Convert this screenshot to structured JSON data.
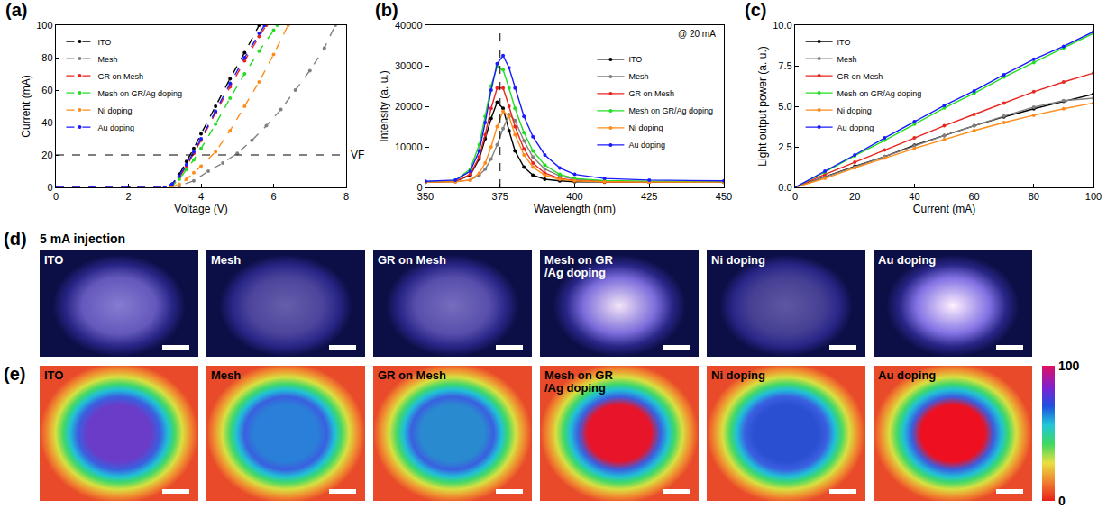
{
  "chart_data": [
    {
      "type": "line",
      "panel": "(a)",
      "x_label": "Voltage (V)",
      "y_label": "Current (mA)",
      "xlim": [
        0,
        8
      ],
      "xticks": [
        0,
        2,
        4,
        6,
        8
      ],
      "ylim": [
        0,
        100
      ],
      "yticks": [
        0,
        20,
        40,
        60,
        80,
        100
      ],
      "grid": false,
      "legend": "top left",
      "marker": "circle",
      "line_style": "dash",
      "hlines": [
        {
          "y": 20,
          "label": "VF",
          "line_style": "dash"
        }
      ],
      "series": [
        {
          "name": "ITO",
          "color": "#000000",
          "x": [
            0,
            1,
            2,
            3,
            3.2,
            3.4,
            3.6,
            3.8,
            4.0,
            4.4,
            4.8,
            5.2,
            5.6
          ],
          "values": [
            0,
            0,
            0,
            0,
            2,
            8,
            16,
            24,
            33,
            50,
            67,
            83,
            100
          ]
        },
        {
          "name": "Mesh",
          "color": "#808080",
          "x": [
            0,
            1,
            2,
            3,
            3.4,
            3.8,
            4.2,
            4.6,
            5.0,
            5.4,
            5.8,
            6.2,
            6.6,
            7.0,
            7.4,
            7.7
          ],
          "values": [
            0,
            0,
            0,
            0,
            1,
            4,
            10,
            15,
            21,
            29,
            38,
            48,
            60,
            72,
            86,
            100
          ]
        },
        {
          "name": "GR on Mesh",
          "color": "#e8251f",
          "x": [
            0,
            1,
            2,
            3,
            3.2,
            3.4,
            3.6,
            3.8,
            4.0,
            4.4,
            4.8,
            5.2,
            5.6,
            5.8
          ],
          "values": [
            0,
            0,
            0,
            0,
            1,
            6,
            13,
            21,
            29,
            46,
            62,
            78,
            93,
            100
          ]
        },
        {
          "name": "Mesh on GR/Ag doping",
          "color": "#22dd22",
          "x": [
            0,
            1,
            2,
            3,
            3.2,
            3.4,
            3.6,
            3.8,
            4.0,
            4.4,
            4.8,
            5.2,
            5.6,
            6.0,
            6.1
          ],
          "values": [
            0,
            0,
            0,
            0,
            1,
            5,
            11,
            17,
            24,
            39,
            55,
            70,
            84,
            97,
            100
          ]
        },
        {
          "name": "Ni doping",
          "color": "#ff8c1a",
          "x": [
            0,
            1,
            2,
            3,
            3.2,
            3.4,
            3.6,
            3.8,
            4.0,
            4.4,
            4.8,
            5.2,
            5.6,
            6.0,
            6.4
          ],
          "values": [
            0,
            0,
            0,
            0,
            0.5,
            2,
            5,
            9,
            13,
            22,
            35,
            50,
            65,
            82,
            100
          ]
        },
        {
          "name": "Au doping",
          "color": "#1a1aff",
          "x": [
            0,
            1,
            2,
            3,
            3.2,
            3.4,
            3.6,
            3.8,
            4.0,
            4.4,
            4.8,
            5.2,
            5.6,
            5.75
          ],
          "values": [
            0,
            0,
            0,
            0,
            2,
            7,
            14,
            22,
            30,
            47,
            64,
            80,
            95,
            100
          ]
        }
      ]
    },
    {
      "type": "line",
      "panel": "(b)",
      "x_label": "Wavelength (nm)",
      "y_label": "Intensity (a. u.)",
      "xlim": [
        350,
        450
      ],
      "xticks": [
        350,
        375,
        400,
        425,
        450
      ],
      "ylim": [
        0,
        40000
      ],
      "yticks": [
        0,
        10000,
        20000,
        30000,
        40000
      ],
      "grid": false,
      "legend": "top right",
      "marker": "circle",
      "line_style": "solid",
      "annotations": [
        {
          "text": "@ 20 mA"
        }
      ],
      "vlines": [
        {
          "x": 375,
          "line_style": "dash"
        }
      ],
      "x": [
        350,
        360,
        365,
        368,
        370,
        372,
        374,
        376,
        378,
        380,
        383,
        386,
        390,
        395,
        400,
        410,
        425,
        450
      ],
      "series": [
        {
          "name": "ITO",
          "color": "#000000",
          "values": [
            1300,
            1500,
            3000,
            7000,
            12000,
            17000,
            21000,
            19500,
            14000,
            9000,
            5000,
            3000,
            2000,
            1600,
            1400,
            1300,
            1300,
            1300
          ]
        },
        {
          "name": "Mesh",
          "color": "#808080",
          "values": [
            1300,
            1400,
            1800,
            3000,
            4500,
            7000,
            10500,
            14500,
            18000,
            16500,
            11500,
            7500,
            4500,
            2800,
            2000,
            1500,
            1400,
            1300
          ]
        },
        {
          "name": "GR on Mesh",
          "color": "#e8251f",
          "values": [
            1300,
            1500,
            3200,
            7500,
            13000,
            19500,
            24500,
            24500,
            20000,
            15000,
            9500,
            6000,
            3500,
            2200,
            1700,
            1400,
            1300,
            1300
          ]
        },
        {
          "name": "Mesh on GR/Ag doping",
          "color": "#22dd22",
          "values": [
            1400,
            1700,
            4500,
            10500,
            17500,
            25000,
            29800,
            29000,
            24500,
            19500,
            13500,
            9000,
            5500,
            3200,
            2200,
            1700,
            1500,
            1400
          ]
        },
        {
          "name": "Ni doping",
          "color": "#ff8c1a",
          "values": [
            1300,
            1400,
            1800,
            3500,
            6000,
            10000,
            15000,
            18800,
            17500,
            13000,
            8000,
            5000,
            3000,
            2000,
            1600,
            1400,
            1300,
            1300
          ]
        },
        {
          "name": "Au doping",
          "color": "#1a1aff",
          "values": [
            1500,
            1800,
            4000,
            9000,
            16000,
            24000,
            30500,
            32500,
            29500,
            24500,
            17500,
            12500,
            8000,
            4800,
            3200,
            2200,
            1800,
            1600
          ]
        }
      ]
    },
    {
      "type": "line",
      "panel": "(c)",
      "x_label": "Current (mA)",
      "y_label": "Light output power (a. u.)",
      "xlim": [
        0,
        100
      ],
      "xticks": [
        0,
        20,
        40,
        60,
        80,
        100
      ],
      "ylim": [
        0,
        10
      ],
      "yticks": [
        {
          "value": 0,
          "label": "0.0"
        },
        2.5,
        {
          "value": 5,
          "label": "5.0"
        },
        7.5,
        {
          "value": 10,
          "label": "10.0"
        }
      ],
      "grid": false,
      "legend": "top left",
      "marker": "circle",
      "line_style": "solid",
      "x": [
        0,
        10,
        20,
        30,
        40,
        50,
        60,
        70,
        80,
        90,
        100
      ],
      "series": [
        {
          "name": "ITO",
          "color": "#000000",
          "values": [
            0,
            0.65,
            1.3,
            1.9,
            2.6,
            3.2,
            3.8,
            4.35,
            4.85,
            5.3,
            5.75
          ]
        },
        {
          "name": "Mesh",
          "color": "#808080",
          "values": [
            0,
            0.62,
            1.25,
            1.9,
            2.55,
            3.2,
            3.8,
            4.4,
            4.95,
            5.35,
            5.5
          ]
        },
        {
          "name": "GR on Mesh",
          "color": "#e8251f",
          "values": [
            0,
            0.8,
            1.55,
            2.3,
            3.05,
            3.8,
            4.5,
            5.2,
            5.9,
            6.5,
            7.05
          ]
        },
        {
          "name": "Mesh on GR/Ag doping",
          "color": "#22dd22",
          "values": [
            0,
            0.95,
            1.95,
            2.9,
            3.9,
            4.9,
            5.8,
            6.8,
            7.7,
            8.6,
            9.5
          ]
        },
        {
          "name": "Ni doping",
          "color": "#ff8c1a",
          "values": [
            0,
            0.55,
            1.2,
            1.8,
            2.4,
            2.95,
            3.5,
            4.0,
            4.45,
            4.85,
            5.2
          ]
        },
        {
          "name": "Au doping",
          "color": "#1a1aff",
          "values": [
            0,
            1.0,
            2.0,
            3.05,
            4.05,
            5.05,
            5.95,
            6.95,
            7.9,
            8.7,
            9.6
          ]
        }
      ]
    }
  ],
  "panel_d": {
    "panel": "(d)",
    "title": "5 mA injection",
    "labels": [
      "ITO",
      "Mesh",
      "GR on Mesh",
      "Mesh on GR /Ag doping",
      "Ni doping",
      "Au doping"
    ]
  },
  "panel_e": {
    "panel": "(e)",
    "labels": [
      "ITO",
      "Mesh",
      "GR on Mesh",
      "Mesh on GR /Ag doping",
      "Ni doping",
      "Au doping"
    ],
    "colorbar": {
      "range": [
        0,
        100
      ],
      "ticks": [
        0,
        100
      ]
    }
  }
}
